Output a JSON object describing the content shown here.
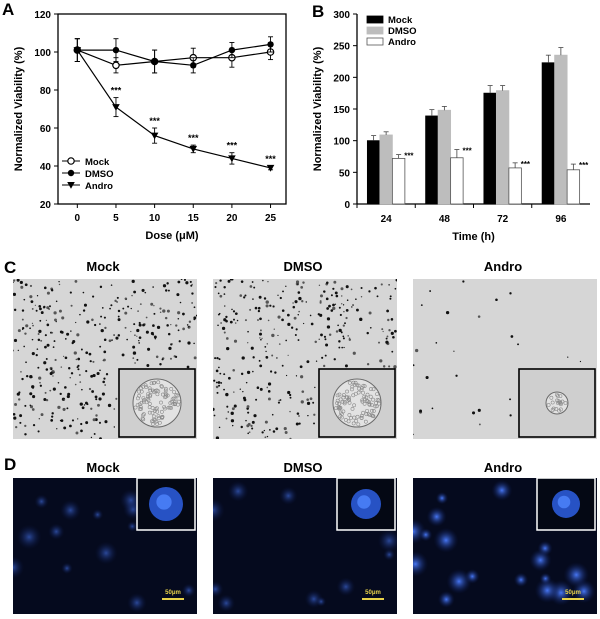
{
  "panel_letters": {
    "a": "A",
    "b": "B",
    "c": "C",
    "d": "D"
  },
  "chart_data": [
    {
      "type": "line",
      "panel": "A",
      "xlabel": "Dose (μM)",
      "ylabel": "Normalized Viability (%)",
      "x": [
        0,
        5,
        10,
        15,
        20,
        25
      ],
      "xticks": [
        "0",
        "5",
        "10",
        "15",
        "20",
        "25"
      ],
      "yticks": [
        "20",
        "40",
        "60",
        "80",
        "100",
        "120"
      ],
      "ylim": [
        20,
        120
      ],
      "series": [
        {
          "name": "Mock",
          "values": [
            101,
            93,
            95,
            97,
            97,
            100
          ],
          "errors": [
            6,
            4,
            6,
            5,
            5,
            4
          ],
          "marker": "open-circle"
        },
        {
          "name": "DMSO",
          "values": [
            101,
            101,
            95,
            93,
            101,
            104
          ],
          "errors": [
            6,
            6,
            6,
            4,
            4,
            4
          ],
          "marker": "filled-circle"
        },
        {
          "name": "Andro",
          "values": [
            101,
            71,
            56,
            49,
            44,
            39
          ],
          "errors": [
            6,
            5,
            4,
            2,
            3,
            1
          ],
          "marker": "filled-triangle-down"
        }
      ],
      "annotations": [
        {
          "x": 5,
          "text": "***"
        },
        {
          "x": 10,
          "text": "***"
        },
        {
          "x": 15,
          "text": "***"
        },
        {
          "x": 20,
          "text": "***"
        },
        {
          "x": 25,
          "text": "***"
        }
      ],
      "legend": "bottom-left",
      "grid": false
    },
    {
      "type": "bar",
      "panel": "B",
      "xlabel": "Time (h)",
      "ylabel": "Normalized Viability (%)",
      "categories": [
        "24",
        "48",
        "72",
        "96"
      ],
      "yticks": [
        "0",
        "50",
        "100",
        "150",
        "200",
        "250",
        "300"
      ],
      "ylim": [
        0,
        300
      ],
      "series": [
        {
          "name": "Mock",
          "values": [
            100,
            139,
            175,
            223
          ],
          "errors": [
            8,
            10,
            12,
            12
          ],
          "color": "#000000"
        },
        {
          "name": "DMSO",
          "values": [
            109,
            148,
            179,
            235
          ],
          "errors": [
            5,
            6,
            8,
            12
          ],
          "color": "#bdbdbd"
        },
        {
          "name": "Andro",
          "values": [
            72,
            73,
            57,
            54
          ],
          "errors": [
            6,
            13,
            8,
            9
          ],
          "color": "#ffffff"
        }
      ],
      "annotations": [
        "***",
        "***",
        "***",
        "***"
      ],
      "legend": "top-left",
      "grid": false
    }
  ],
  "panel_c": {
    "labels": [
      "Mock",
      "DMSO",
      "Andro"
    ]
  },
  "panel_d": {
    "labels": [
      "Mock",
      "DMSO",
      "Andro"
    ],
    "scalebar": "50μm"
  },
  "colors": {
    "bright_field": "#d6d6d6",
    "fluorescence_bg": "#050a1e",
    "nucleus": "#2b5bd7",
    "scalebar": "#e8d24a"
  }
}
